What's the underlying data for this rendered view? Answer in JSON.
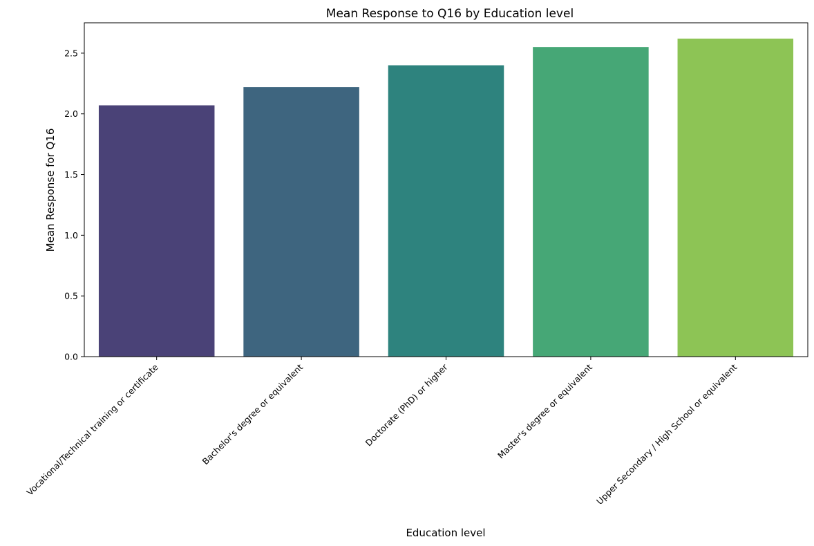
{
  "chart_data": {
    "type": "bar",
    "title": "Mean Response to Q16 by Education level",
    "xlabel": "Education level",
    "ylabel": "Mean Response for Q16",
    "categories": [
      "Vocational/Technical training or certificate",
      "Bachelor's degree or equivalent",
      "Doctorate (PhD) or higher",
      "Master's degree or equivalent",
      "Upper Secondary / High School or equivalent"
    ],
    "values": [
      2.07,
      2.22,
      2.4,
      2.55,
      2.62
    ],
    "colors": [
      "#4a4277",
      "#3e657f",
      "#2e837e",
      "#46a776",
      "#8dc455"
    ],
    "ylim": [
      0,
      2.75
    ],
    "yticks": [
      0.0,
      0.5,
      1.0,
      1.5,
      2.0,
      2.5
    ],
    "grid": false,
    "legend": "none"
  }
}
